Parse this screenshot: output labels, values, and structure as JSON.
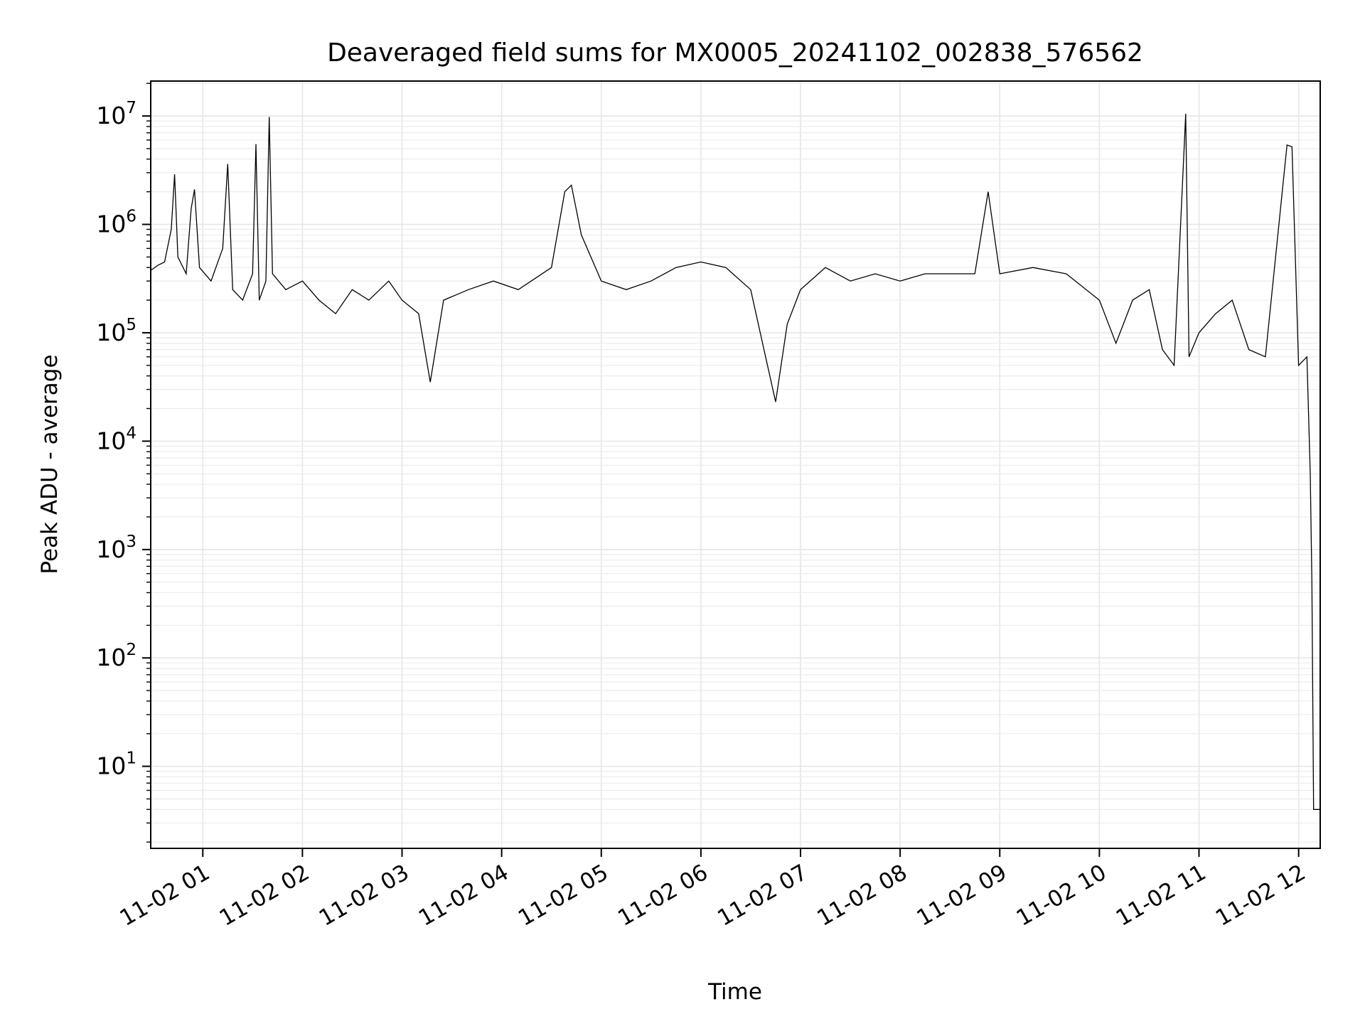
{
  "chart_data": {
    "type": "line",
    "title": "Deaveraged field sums for MX0005_20241102_002838_576562",
    "xlabel": "Time",
    "ylabel": "Peak ADU - average",
    "x_scale": "time",
    "y_scale": "log",
    "xlim": [
      "2024-11-02 00:28:38",
      "2024-11-02 12:13:00"
    ],
    "ylim": [
      1.75,
      21000000
    ],
    "grid": true,
    "grid_minor": true,
    "x_ticks": [
      {
        "value": "2024-11-02 01:00",
        "label": "11-02 01"
      },
      {
        "value": "2024-11-02 02:00",
        "label": "11-02 02"
      },
      {
        "value": "2024-11-02 03:00",
        "label": "11-02 03"
      },
      {
        "value": "2024-11-02 04:00",
        "label": "11-02 04"
      },
      {
        "value": "2024-11-02 05:00",
        "label": "11-02 05"
      },
      {
        "value": "2024-11-02 06:00",
        "label": "11-02 06"
      },
      {
        "value": "2024-11-02 07:00",
        "label": "11-02 07"
      },
      {
        "value": "2024-11-02 08:00",
        "label": "11-02 08"
      },
      {
        "value": "2024-11-02 09:00",
        "label": "11-02 09"
      },
      {
        "value": "2024-11-02 10:00",
        "label": "11-02 10"
      },
      {
        "value": "2024-11-02 11:00",
        "label": "11-02 11"
      },
      {
        "value": "2024-11-02 12:00",
        "label": "11-02 12"
      }
    ],
    "y_ticks": [
      {
        "value": 10,
        "base": "10",
        "exp": "1"
      },
      {
        "value": 100,
        "base": "10",
        "exp": "2"
      },
      {
        "value": 1000,
        "base": "10",
        "exp": "3"
      },
      {
        "value": 10000,
        "base": "10",
        "exp": "4"
      },
      {
        "value": 100000,
        "base": "10",
        "exp": "5"
      },
      {
        "value": 1000000,
        "base": "10",
        "exp": "6"
      },
      {
        "value": 10000000,
        "base": "10",
        "exp": "7"
      }
    ],
    "series": [
      {
        "color": "#000000",
        "points": [
          [
            "2024-11-02 00:29",
            380000
          ],
          [
            "2024-11-02 00:33",
            420000
          ],
          [
            "2024-11-02 00:37",
            450000
          ],
          [
            "2024-11-02 00:41",
            900000
          ],
          [
            "2024-11-02 00:43",
            2900000
          ],
          [
            "2024-11-02 00:45",
            500000
          ],
          [
            "2024-11-02 00:50",
            350000
          ],
          [
            "2024-11-02 00:53",
            1400000
          ],
          [
            "2024-11-02 00:55",
            2100000
          ],
          [
            "2024-11-02 00:58",
            400000
          ],
          [
            "2024-11-02 01:05",
            300000
          ],
          [
            "2024-11-02 01:12",
            600000
          ],
          [
            "2024-11-02 01:15",
            3600000
          ],
          [
            "2024-11-02 01:18",
            250000
          ],
          [
            "2024-11-02 01:24",
            200000
          ],
          [
            "2024-11-02 01:30",
            350000
          ],
          [
            "2024-11-02 01:32",
            5500000
          ],
          [
            "2024-11-02 01:34",
            200000
          ],
          [
            "2024-11-02 01:38",
            300000
          ],
          [
            "2024-11-02 01:40",
            9800000
          ],
          [
            "2024-11-02 01:42",
            350000
          ],
          [
            "2024-11-02 01:50",
            250000
          ],
          [
            "2024-11-02 02:00",
            300000
          ],
          [
            "2024-11-02 02:10",
            200000
          ],
          [
            "2024-11-02 02:20",
            150000
          ],
          [
            "2024-11-02 02:30",
            250000
          ],
          [
            "2024-11-02 02:40",
            200000
          ],
          [
            "2024-11-02 02:52",
            300000
          ],
          [
            "2024-11-02 03:00",
            200000
          ],
          [
            "2024-11-02 03:10",
            150000
          ],
          [
            "2024-11-02 03:17",
            35000
          ],
          [
            "2024-11-02 03:25",
            200000
          ],
          [
            "2024-11-02 03:40",
            250000
          ],
          [
            "2024-11-02 03:55",
            300000
          ],
          [
            "2024-11-02 04:10",
            250000
          ],
          [
            "2024-11-02 04:30",
            400000
          ],
          [
            "2024-11-02 04:38",
            2000000
          ],
          [
            "2024-11-02 04:42",
            2300000
          ],
          [
            "2024-11-02 04:48",
            800000
          ],
          [
            "2024-11-02 05:00",
            300000
          ],
          [
            "2024-11-02 05:15",
            250000
          ],
          [
            "2024-11-02 05:30",
            300000
          ],
          [
            "2024-11-02 05:45",
            400000
          ],
          [
            "2024-11-02 06:00",
            450000
          ],
          [
            "2024-11-02 06:15",
            400000
          ],
          [
            "2024-11-02 06:30",
            250000
          ],
          [
            "2024-11-02 06:38",
            70000
          ],
          [
            "2024-11-02 06:45",
            23000
          ],
          [
            "2024-11-02 06:52",
            120000
          ],
          [
            "2024-11-02 07:00",
            250000
          ],
          [
            "2024-11-02 07:15",
            400000
          ],
          [
            "2024-11-02 07:30",
            300000
          ],
          [
            "2024-11-02 07:45",
            350000
          ],
          [
            "2024-11-02 08:00",
            300000
          ],
          [
            "2024-11-02 08:15",
            350000
          ],
          [
            "2024-11-02 08:30",
            350000
          ],
          [
            "2024-11-02 08:45",
            350000
          ],
          [
            "2024-11-02 08:53",
            2000000
          ],
          [
            "2024-11-02 09:00",
            350000
          ],
          [
            "2024-11-02 09:20",
            400000
          ],
          [
            "2024-11-02 09:40",
            350000
          ],
          [
            "2024-11-02 10:00",
            200000
          ],
          [
            "2024-11-02 10:10",
            80000
          ],
          [
            "2024-11-02 10:20",
            200000
          ],
          [
            "2024-11-02 10:30",
            250000
          ],
          [
            "2024-11-02 10:38",
            70000
          ],
          [
            "2024-11-02 10:45",
            50000
          ],
          [
            "2024-11-02 10:52",
            10500000
          ],
          [
            "2024-11-02 10:54",
            60000
          ],
          [
            "2024-11-02 11:00",
            100000
          ],
          [
            "2024-11-02 11:10",
            150000
          ],
          [
            "2024-11-02 11:20",
            200000
          ],
          [
            "2024-11-02 11:30",
            70000
          ],
          [
            "2024-11-02 11:40",
            60000
          ],
          [
            "2024-11-02 11:53",
            5400000
          ],
          [
            "2024-11-02 11:56",
            5200000
          ],
          [
            "2024-11-02 12:00",
            50000
          ],
          [
            "2024-11-02 12:05",
            60000
          ],
          [
            "2024-11-02 12:07",
            5000
          ],
          [
            "2024-11-02 12:08",
            500
          ],
          [
            "2024-11-02 12:09",
            4
          ],
          [
            "2024-11-02 12:13",
            4
          ]
        ]
      }
    ]
  }
}
